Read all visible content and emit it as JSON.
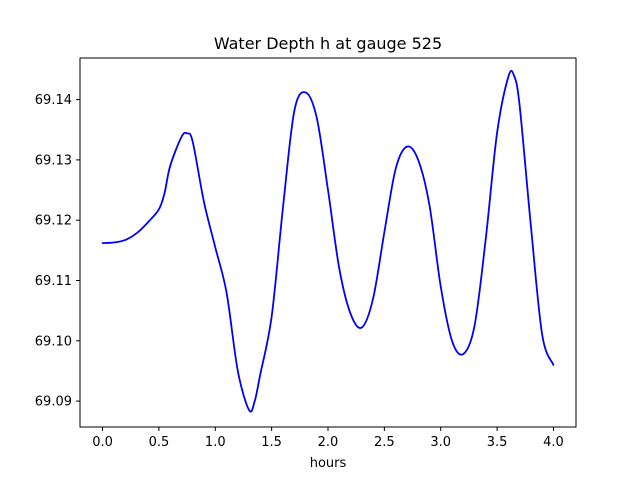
{
  "chart_data": {
    "type": "line",
    "title": "Water Depth h at gauge 525",
    "xlabel": "hours",
    "ylabel": "",
    "xlim": [
      -0.2,
      4.2
    ],
    "ylim": [
      69.0857,
      69.1469
    ],
    "grid": false,
    "legend": "none",
    "x_ticks": [
      0.0,
      0.5,
      1.0,
      1.5,
      2.0,
      2.5,
      3.0,
      3.5,
      4.0
    ],
    "x_tick_labels": [
      "0.0",
      "0.5",
      "1.0",
      "1.5",
      "2.0",
      "2.5",
      "3.0",
      "3.5",
      "4.0"
    ],
    "y_ticks": [
      69.09,
      69.1,
      69.11,
      69.12,
      69.13,
      69.14
    ],
    "y_tick_labels": [
      "69.09",
      "69.10",
      "69.11",
      "69.12",
      "69.13",
      "69.14"
    ],
    "series": [
      {
        "color": "#0000ff",
        "x": [
          0.0,
          0.1,
          0.2,
          0.3,
          0.4,
          0.5,
          0.55,
          0.6,
          0.7,
          0.75,
          0.8,
          0.9,
          1.0,
          1.1,
          1.2,
          1.3,
          1.35,
          1.4,
          1.5,
          1.6,
          1.7,
          1.8,
          1.9,
          2.0,
          2.1,
          2.2,
          2.3,
          2.4,
          2.5,
          2.6,
          2.7,
          2.8,
          2.9,
          3.0,
          3.1,
          3.2,
          3.3,
          3.4,
          3.5,
          3.6,
          3.65,
          3.7,
          3.8,
          3.9,
          4.0
        ],
        "y": [
          69.1162,
          69.1163,
          69.1167,
          69.1178,
          69.1196,
          69.1218,
          69.1245,
          69.129,
          69.1338,
          69.1344,
          69.133,
          69.123,
          69.1155,
          69.108,
          69.095,
          69.0885,
          69.09,
          69.0945,
          69.104,
          69.122,
          69.138,
          69.1412,
          69.137,
          69.125,
          69.112,
          69.1045,
          69.1022,
          69.107,
          69.118,
          69.1285,
          69.1322,
          69.13,
          69.1225,
          69.109,
          69.1,
          69.0978,
          69.1025,
          69.117,
          69.1345,
          69.1438,
          69.144,
          69.139,
          69.119,
          69.101,
          69.096
        ]
      }
    ]
  }
}
